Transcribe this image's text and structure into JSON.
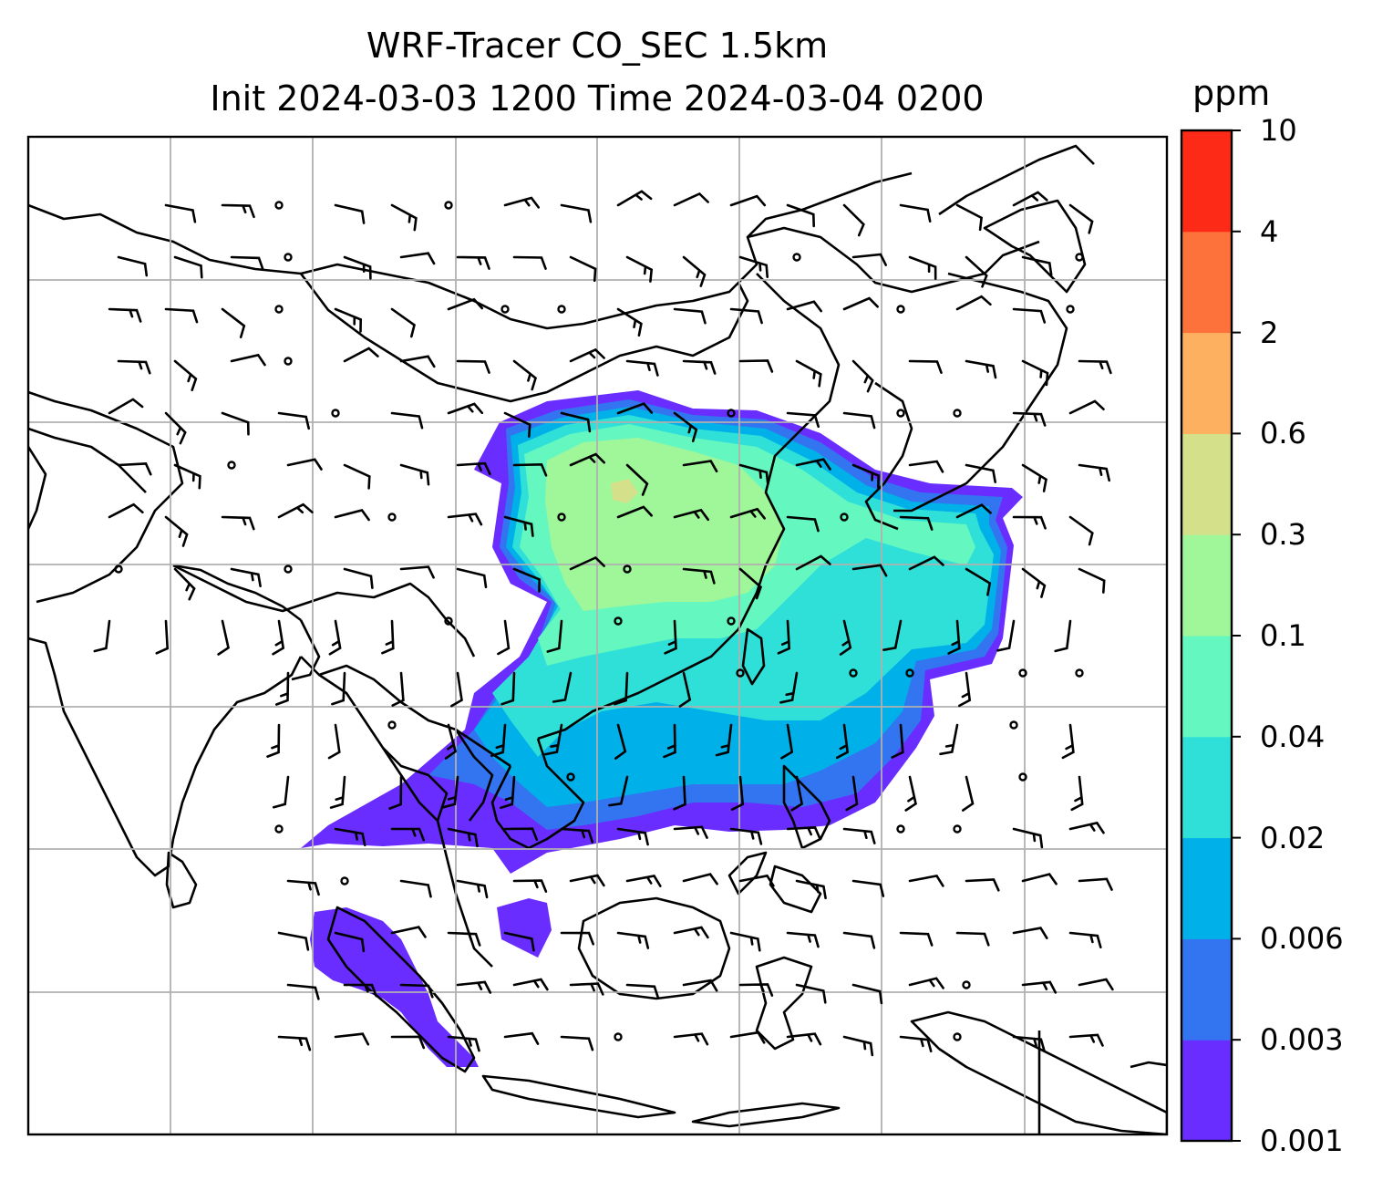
{
  "title_line1": "WRF-Tracer CO_SEC 1.5km",
  "title_line2": "Init 2024-03-03 1200 Time 2024-03-04 0200",
  "colorbar": {
    "units": "ppm",
    "levels": [
      "0.001",
      "0.003",
      "0.006",
      "0.02",
      "0.04",
      "0.1",
      "0.3",
      "0.6",
      "2",
      "4",
      "10"
    ],
    "colors": [
      "#6a2dff",
      "#3375f0",
      "#00b0e8",
      "#2ee0d8",
      "#64f7c0",
      "#9ff79a",
      "#d4e08a",
      "#fdb060",
      "#fd723a",
      "#fd2a17"
    ]
  },
  "map_style": {
    "coastline_color": "#000000",
    "gridline_color": "#b0b0b0",
    "barb_color": "#000000"
  }
}
